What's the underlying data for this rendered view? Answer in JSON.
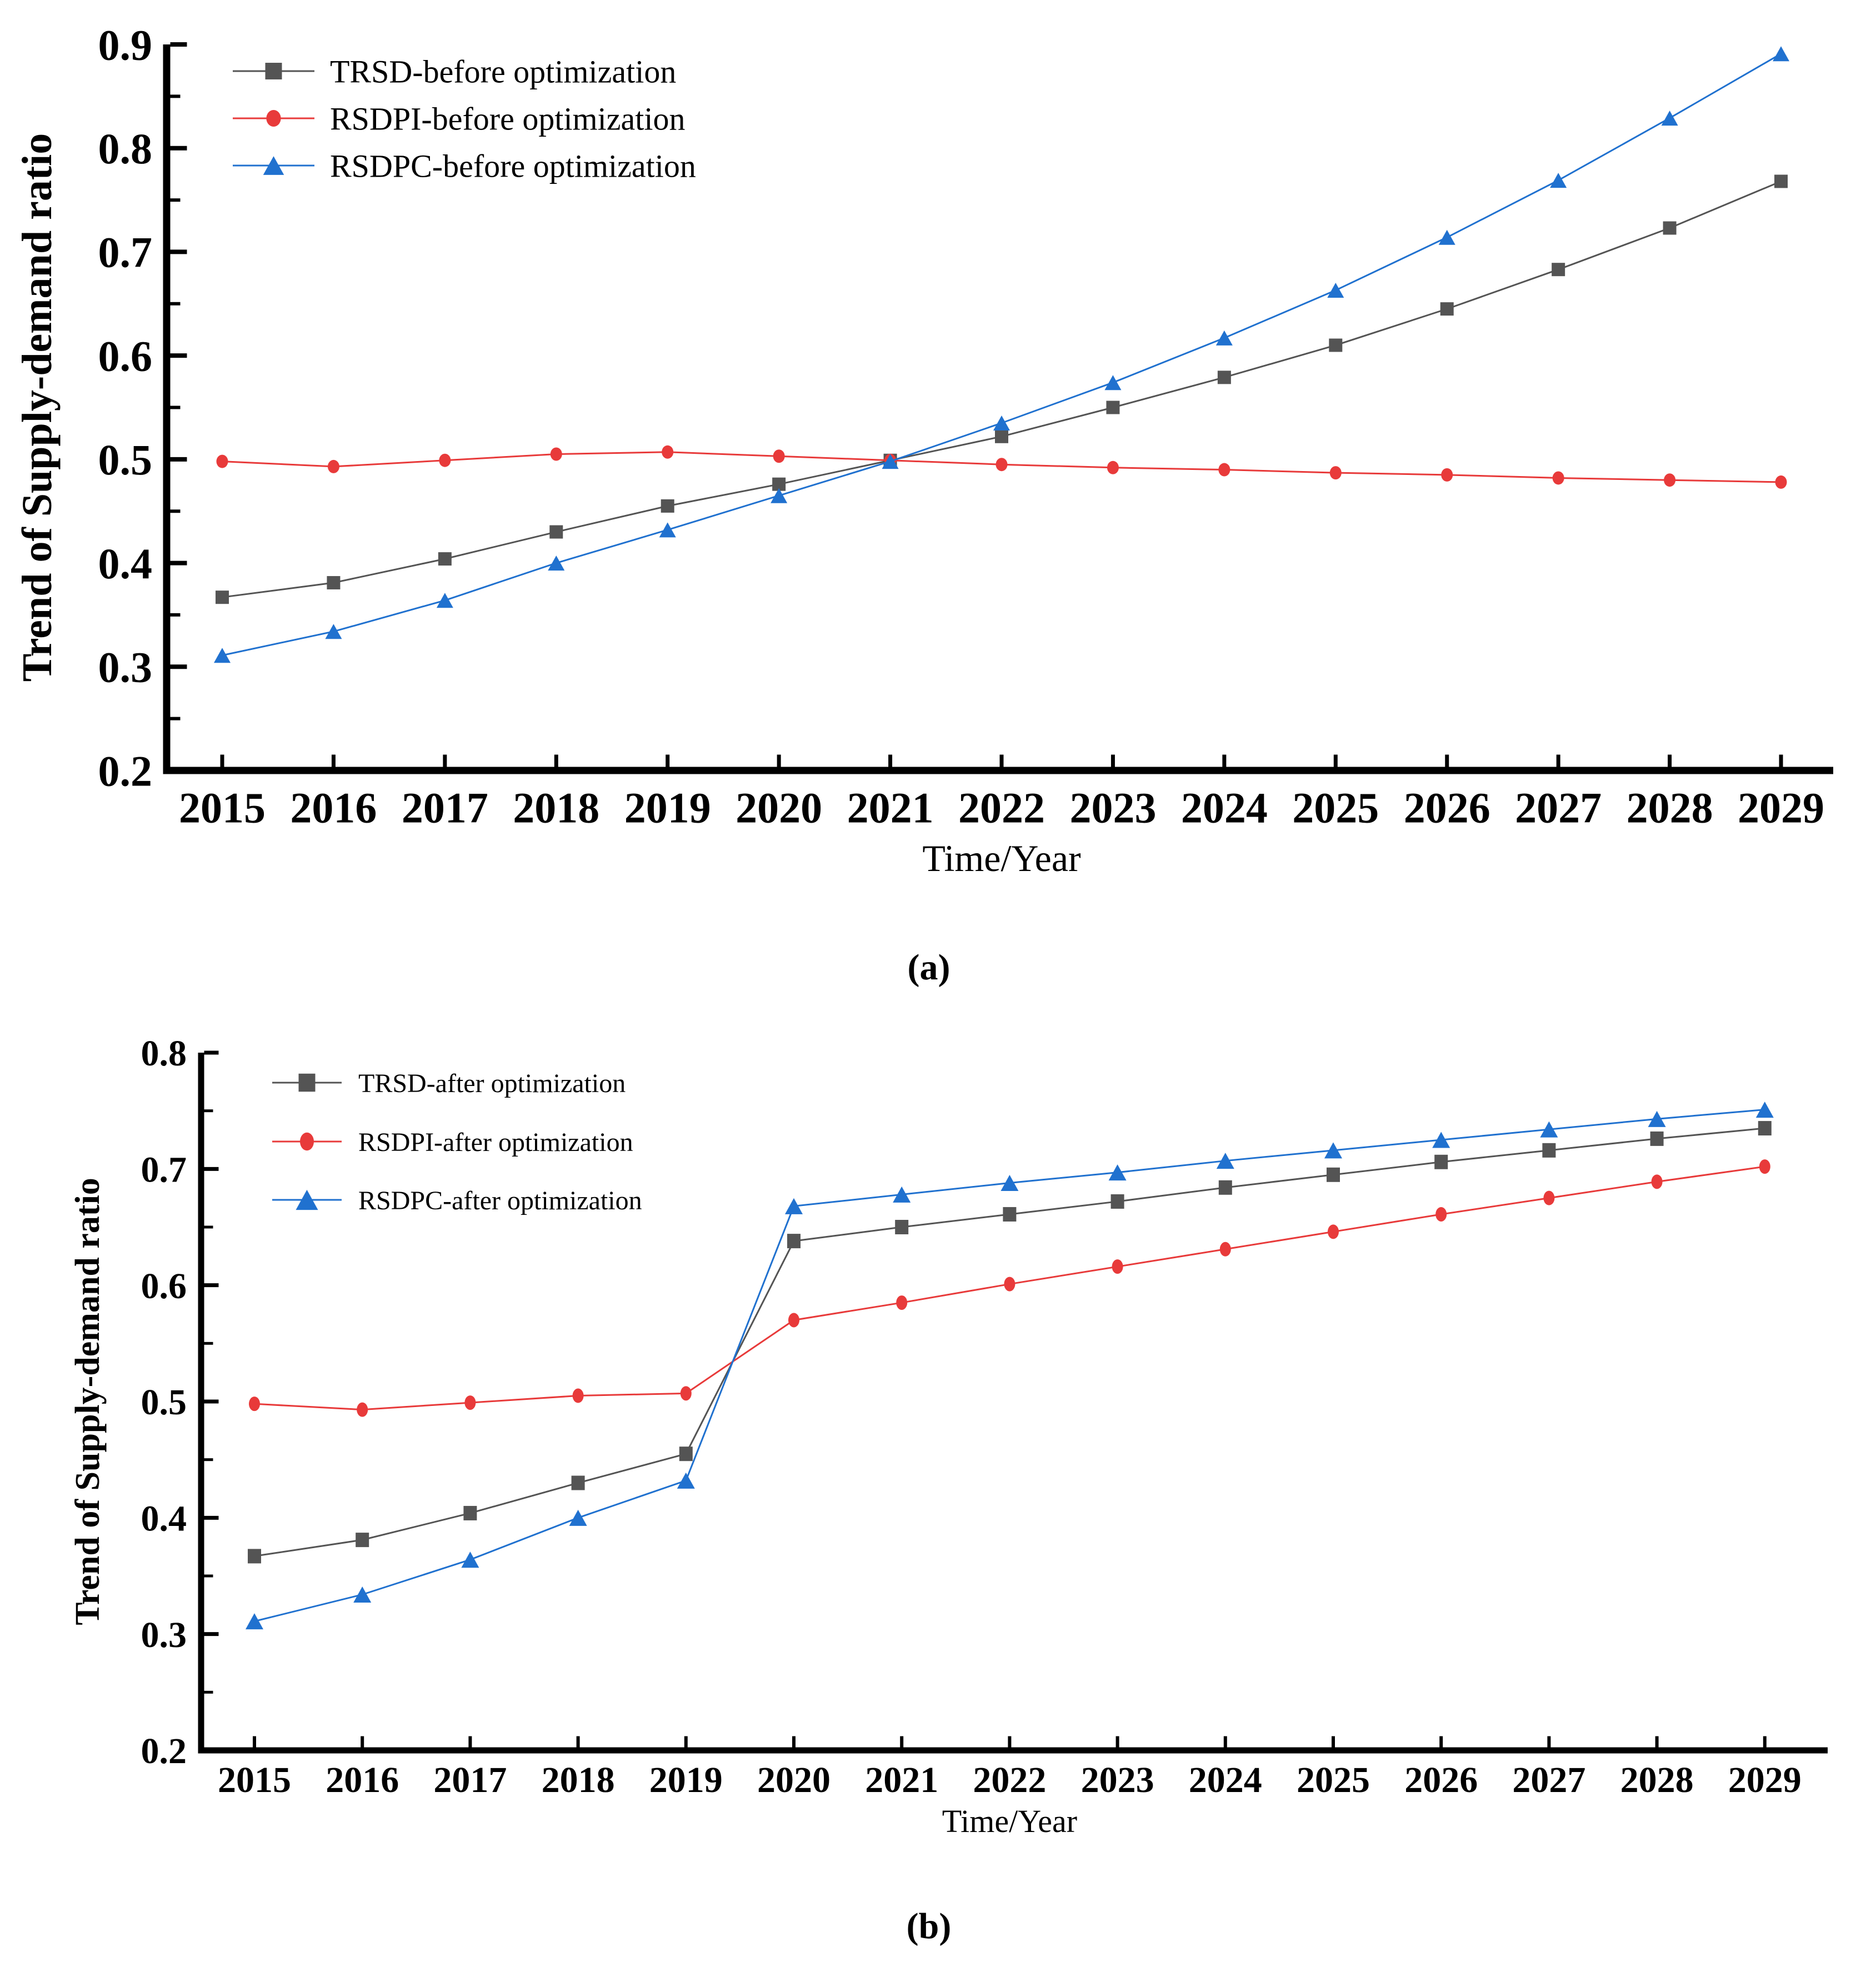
{
  "figure": {
    "caption_a": "(a)",
    "caption_b": "(b)"
  },
  "chart_data": [
    {
      "type": "line",
      "panel": "a",
      "title": "",
      "xlabel": "Time/Year",
      "ylabel": "Trend of Supply-demand ratio",
      "x": [
        2015,
        2016,
        2017,
        2018,
        2019,
        2020,
        2021,
        2022,
        2023,
        2024,
        2025,
        2026,
        2027,
        2028,
        2029
      ],
      "ylim": [
        0.2,
        0.9
      ],
      "ytick_step": 0.1,
      "ytick_labels": [
        "0.2",
        "0.3",
        "0.4",
        "0.5",
        "0.6",
        "0.7",
        "0.8",
        "0.9"
      ],
      "grid": false,
      "legend_position": "top-left",
      "series": [
        {
          "name": "TRSD-before optimization",
          "marker": "square",
          "color": "#545454",
          "values": [
            0.367,
            0.381,
            0.404,
            0.43,
            0.455,
            0.476,
            0.499,
            0.522,
            0.55,
            0.579,
            0.61,
            0.645,
            0.683,
            0.723,
            0.768
          ]
        },
        {
          "name": "RSDPI-before optimization",
          "marker": "circle",
          "color": "#e83a3a",
          "values": [
            0.498,
            0.493,
            0.499,
            0.505,
            0.507,
            0.503,
            0.499,
            0.495,
            0.492,
            0.49,
            0.487,
            0.485,
            0.482,
            0.48,
            0.478
          ]
        },
        {
          "name": "RSDPC-before optimization",
          "marker": "triangle",
          "color": "#2071cf",
          "values": [
            0.311,
            0.334,
            0.364,
            0.4,
            0.432,
            0.465,
            0.498,
            0.535,
            0.574,
            0.617,
            0.663,
            0.714,
            0.769,
            0.829,
            0.891
          ]
        }
      ]
    },
    {
      "type": "line",
      "panel": "b",
      "title": "",
      "xlabel": "Time/Year",
      "ylabel": "Trend of Supply-demand ratio",
      "x": [
        2015,
        2016,
        2017,
        2018,
        2019,
        2020,
        2021,
        2022,
        2023,
        2024,
        2025,
        2026,
        2027,
        2028,
        2029
      ],
      "ylim": [
        0.2,
        0.8
      ],
      "ytick_step": 0.1,
      "ytick_labels": [
        "0.2",
        "0.3",
        "0.4",
        "0.5",
        "0.6",
        "0.7",
        "0.8"
      ],
      "grid": false,
      "legend_position": "top-left",
      "series": [
        {
          "name": "TRSD-after optimization",
          "marker": "square",
          "color": "#545454",
          "values": [
            0.367,
            0.381,
            0.404,
            0.43,
            0.455,
            0.638,
            0.65,
            0.661,
            0.672,
            0.684,
            0.695,
            0.706,
            0.716,
            0.726,
            0.735
          ]
        },
        {
          "name": "RSDPI-after optimization",
          "marker": "circle",
          "color": "#e83a3a",
          "values": [
            0.498,
            0.493,
            0.499,
            0.505,
            0.507,
            0.57,
            0.585,
            0.601,
            0.616,
            0.631,
            0.646,
            0.661,
            0.675,
            0.689,
            0.702
          ]
        },
        {
          "name": "RSDPC-after optimization",
          "marker": "triangle",
          "color": "#2071cf",
          "values": [
            0.311,
            0.334,
            0.364,
            0.4,
            0.432,
            0.668,
            0.678,
            0.688,
            0.697,
            0.707,
            0.716,
            0.725,
            0.734,
            0.743,
            0.751
          ]
        }
      ]
    }
  ]
}
